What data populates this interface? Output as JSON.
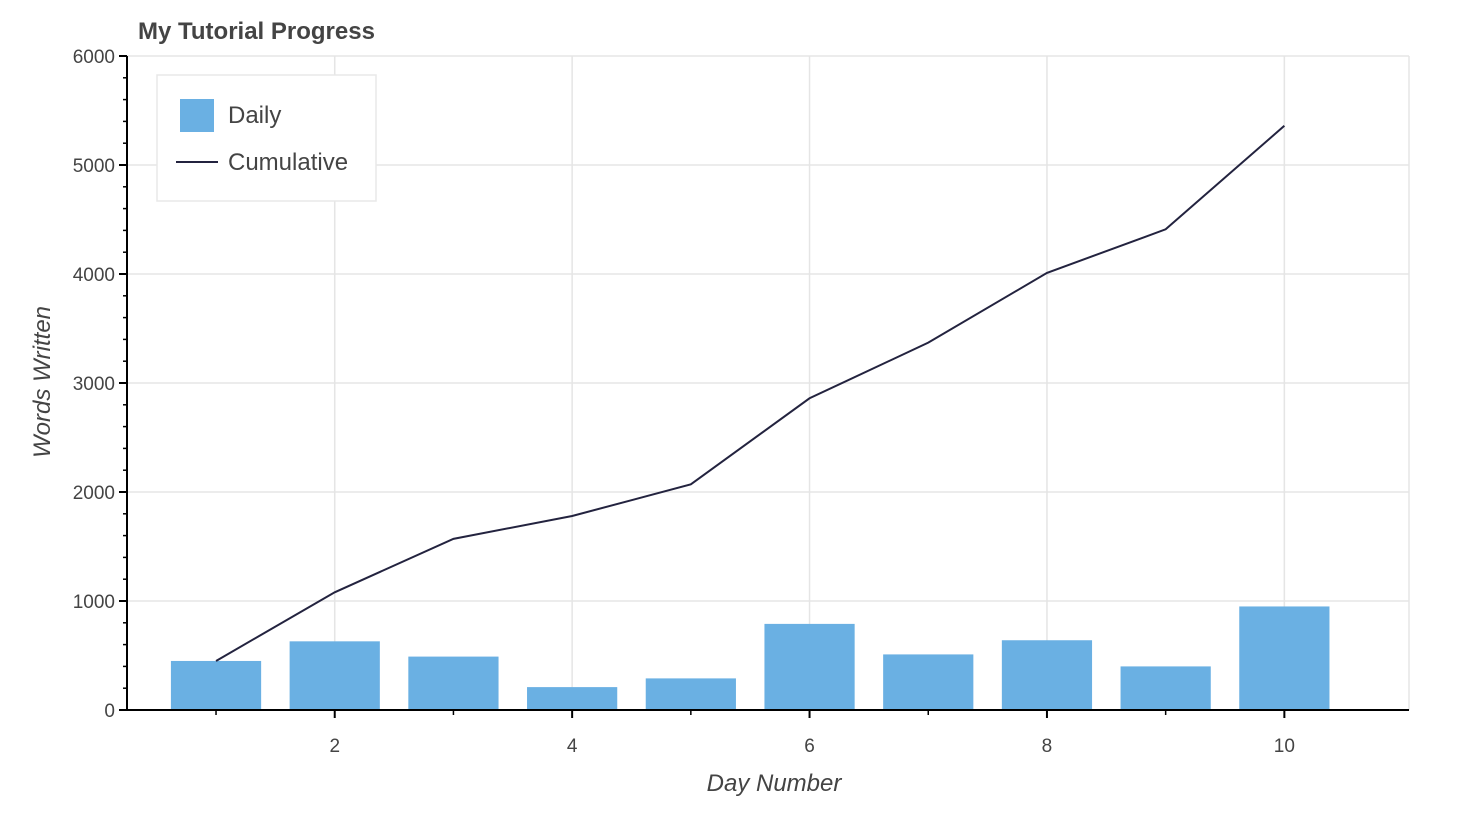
{
  "chart_data": {
    "type": "bar",
    "title": "My Tutorial Progress",
    "xlabel": "Day Number",
    "ylabel": "Words Written",
    "x": [
      1,
      2,
      3,
      4,
      5,
      6,
      7,
      8,
      9,
      10
    ],
    "xlim": [
      0.25,
      11.05
    ],
    "ylim": [
      0,
      6000
    ],
    "x_ticks": [
      2,
      4,
      6,
      8,
      10
    ],
    "y_ticks": [
      0,
      1000,
      2000,
      3000,
      4000,
      5000,
      6000
    ],
    "grid": true,
    "legend_position": "top-left",
    "series": [
      {
        "name": "Daily",
        "kind": "bar",
        "color": "#6ab0e3",
        "values": [
          450,
          630,
          490,
          210,
          290,
          790,
          510,
          640,
          400,
          950
        ]
      },
      {
        "name": "Cumulative",
        "kind": "line",
        "color": "#23233f",
        "values": [
          450,
          1080,
          1570,
          1780,
          2070,
          2860,
          3370,
          4010,
          4410,
          5360
        ]
      }
    ]
  }
}
